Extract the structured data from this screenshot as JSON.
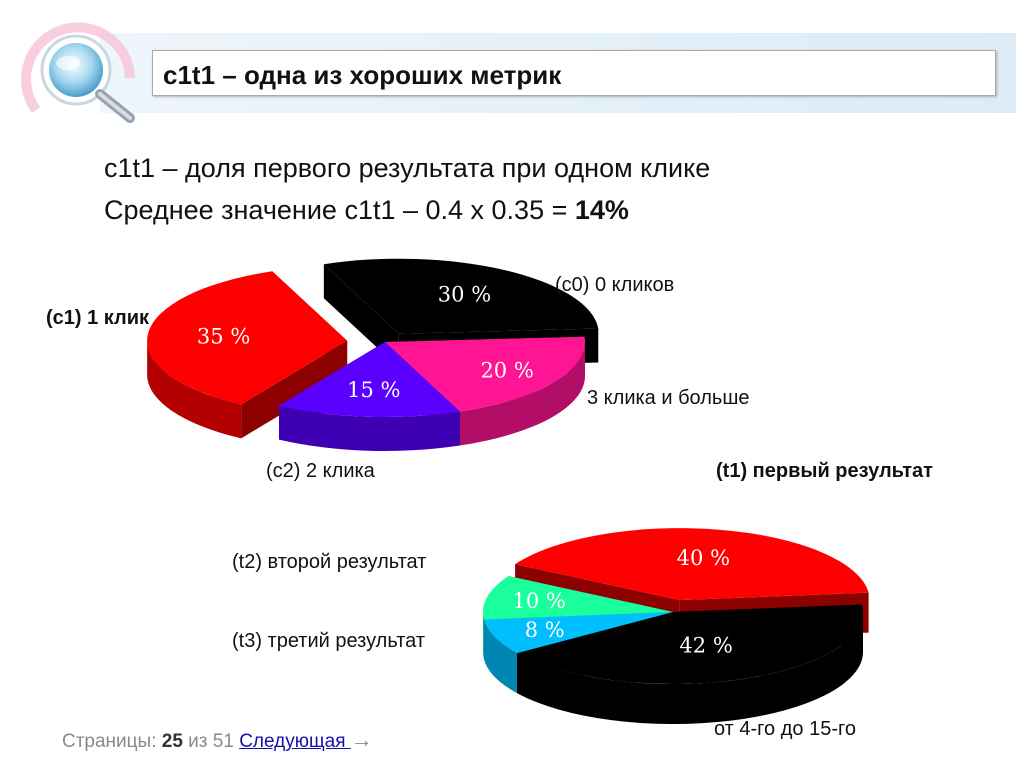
{
  "slide": {
    "title": "c1t1 – одна из хороших метрик",
    "line1": "c1t1 – доля первого результата при одном клике",
    "line2_prefix": "Среднее значение c1t1 – 0.4 x 0.35 = ",
    "line2_result": "14%"
  },
  "chart_data": [
    {
      "type": "pie",
      "slices": [
        {
          "label": "(c1) 1 клик",
          "value": 35,
          "value_label": "35 %",
          "color": "#ff0000"
        },
        {
          "label": "(c0) 0 кликов",
          "value": 30,
          "value_label": "30 %",
          "color": "#000000"
        },
        {
          "label": "3 клика и больше",
          "value": 20,
          "value_label": "20 %",
          "color": "#ff1493"
        },
        {
          "label": "(c2) 2 клика",
          "value": 15,
          "value_label": "15 %",
          "color": "#5a00ff"
        }
      ]
    },
    {
      "type": "pie",
      "slices": [
        {
          "label": "(t1) первый результат",
          "value": 40,
          "value_label": "40 %",
          "color": "#ff0000"
        },
        {
          "label": "от 4-го до 15-го",
          "value": 42,
          "value_label": "42 %",
          "color": "#000000"
        },
        {
          "label": "(t3) третий результат",
          "value": 8,
          "value_label": "8 %",
          "color": "#00bfff"
        },
        {
          "label": "(t2) второй результат",
          "value": 10,
          "value_label": "10 %",
          "color": "#1aff9c"
        }
      ]
    }
  ],
  "pager": {
    "prefix": "Страницы: ",
    "current": "25",
    "of": " из 51 ",
    "next_label": "Следующая  ",
    "arrow": "→"
  }
}
